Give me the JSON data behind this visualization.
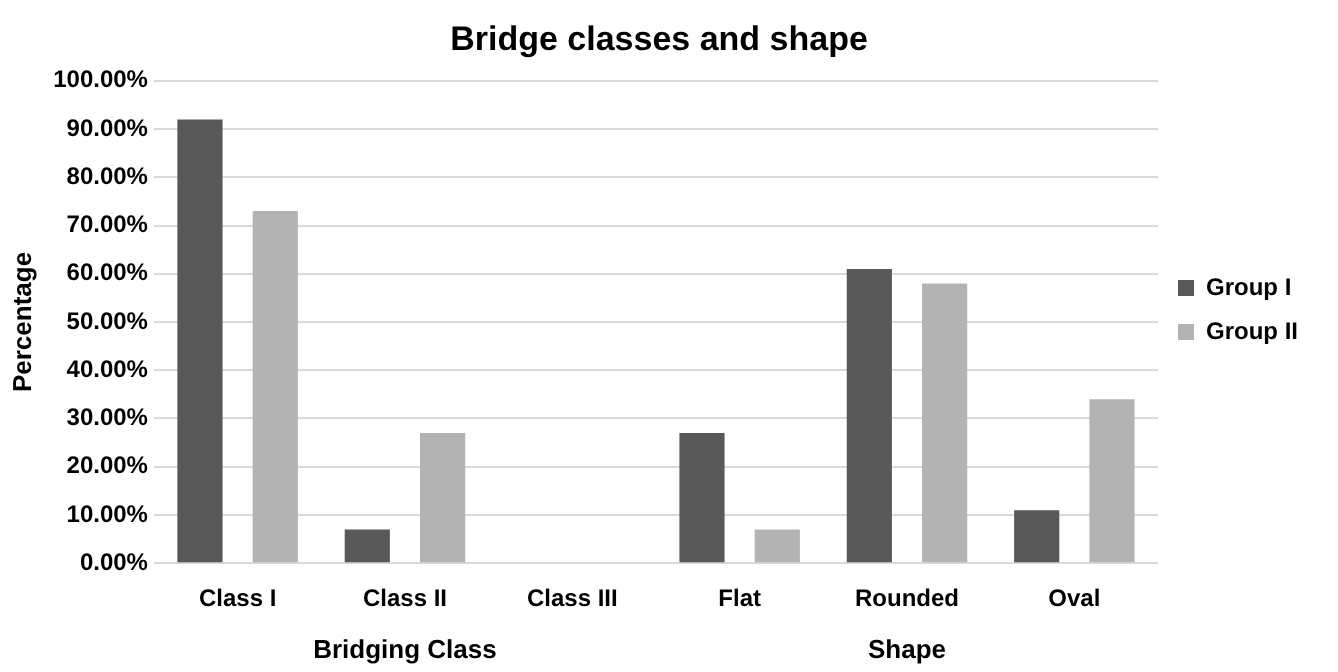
{
  "chart_data": {
    "type": "bar",
    "title": "Bridge classes and shape",
    "ylabel": "Percentage",
    "categories": [
      "Class I",
      "Class II",
      "Class III",
      "Flat",
      "Rounded",
      "Oval"
    ],
    "series": [
      {
        "name": "Group I",
        "color": "#595959",
        "values": [
          92,
          7,
          0,
          27,
          61,
          11
        ]
      },
      {
        "name": "Group II",
        "color": "#b3b3b3",
        "values": [
          73,
          27,
          0,
          7,
          58,
          34
        ]
      }
    ],
    "ylim": [
      0,
      100
    ],
    "yticks": [
      {
        "value": 0,
        "label": "0.00%"
      },
      {
        "value": 10,
        "label": "10.00%"
      },
      {
        "value": 20,
        "label": "20.00%"
      },
      {
        "value": 30,
        "label": "30.00%"
      },
      {
        "value": 40,
        "label": "40.00%"
      },
      {
        "value": 50,
        "label": "50.00%"
      },
      {
        "value": 60,
        "label": "60.00%"
      },
      {
        "value": 70,
        "label": "70.00%"
      },
      {
        "value": 80,
        "label": "80.00%"
      },
      {
        "value": 90,
        "label": "90.00%"
      },
      {
        "value": 100,
        "label": "100.00%"
      }
    ],
    "annotations": [
      "Bridging Class",
      "Shape"
    ],
    "grid": "y",
    "legend": "right"
  }
}
